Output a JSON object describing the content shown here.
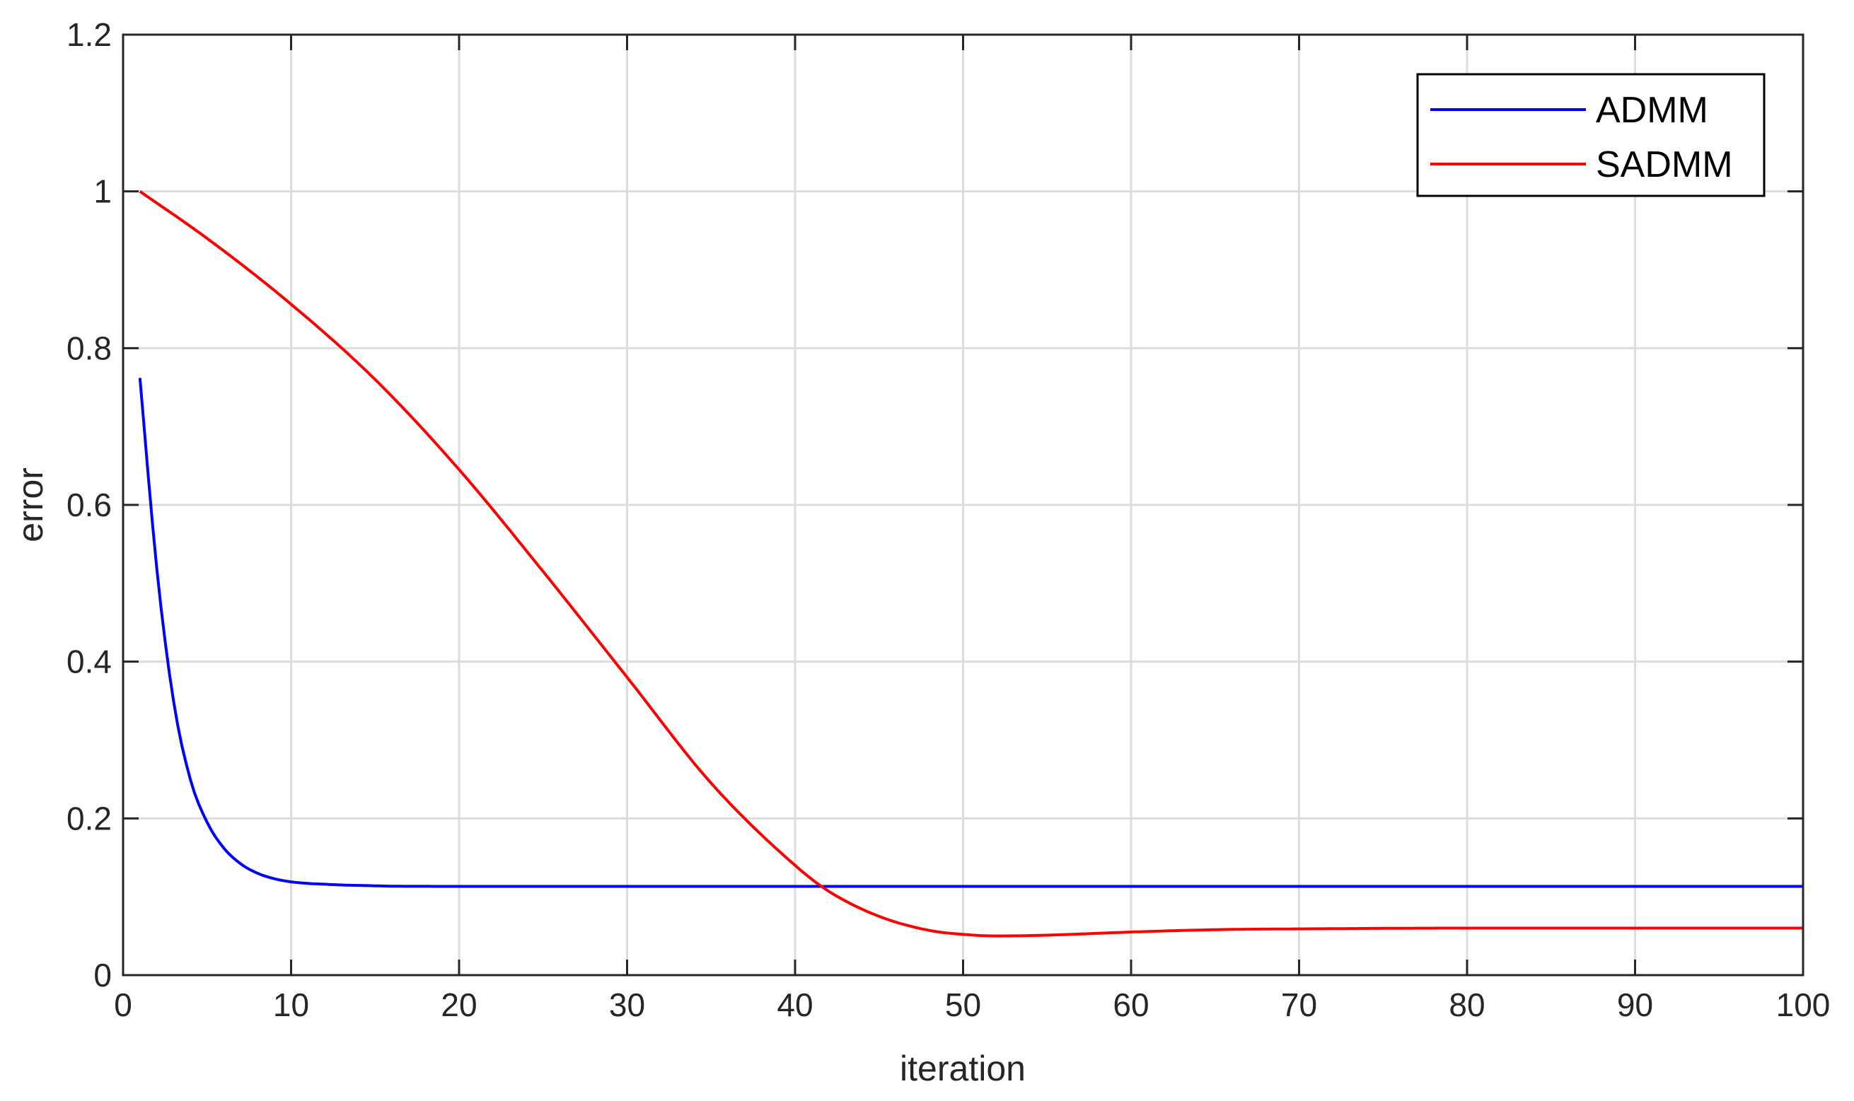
{
  "chart_data": {
    "type": "line",
    "title": "",
    "xlabel": "iteration",
    "ylabel": "error",
    "xlim": [
      0,
      100
    ],
    "ylim": [
      0,
      1.2
    ],
    "xticks": [
      0,
      10,
      20,
      30,
      40,
      50,
      60,
      70,
      80,
      90,
      100
    ],
    "xtick_labels": [
      "0",
      "10",
      "20",
      "30",
      "40",
      "50",
      "60",
      "70",
      "80",
      "90",
      "100"
    ],
    "yticks": [
      0,
      0.2,
      0.4,
      0.6,
      0.8,
      1,
      1.2
    ],
    "ytick_labels": [
      "0",
      "0.2",
      "0.4",
      "0.6",
      "0.8",
      "1",
      "1.2"
    ],
    "grid": true,
    "legend_position": "top-right",
    "series": [
      {
        "name": "ADMM",
        "color": "#0000ff",
        "x": [
          1,
          2,
          3,
          4,
          5,
          6,
          7,
          8,
          9,
          10,
          11,
          12,
          13,
          14,
          15,
          16,
          18,
          20,
          25,
          30,
          40,
          50,
          60,
          70,
          80,
          90,
          100
        ],
        "y": [
          0.762,
          0.52,
          0.35,
          0.25,
          0.195,
          0.162,
          0.142,
          0.13,
          0.123,
          0.119,
          0.117,
          0.116,
          0.115,
          0.1145,
          0.114,
          0.1135,
          0.1133,
          0.1132,
          0.1132,
          0.1132,
          0.1132,
          0.1132,
          0.1132,
          0.1132,
          0.1132,
          0.1132,
          0.1132
        ]
      },
      {
        "name": "SADMM",
        "color": "#ff0000",
        "x": [
          1,
          5,
          10,
          15,
          20,
          25,
          30,
          35,
          40,
          42,
          45,
          48,
          50,
          52,
          55,
          60,
          65,
          70,
          80,
          90,
          100
        ],
        "y": [
          1.0,
          0.94,
          0.856,
          0.76,
          0.645,
          0.515,
          0.38,
          0.245,
          0.14,
          0.107,
          0.075,
          0.057,
          0.052,
          0.05,
          0.051,
          0.055,
          0.058,
          0.059,
          0.06,
          0.06,
          0.06
        ]
      }
    ]
  }
}
